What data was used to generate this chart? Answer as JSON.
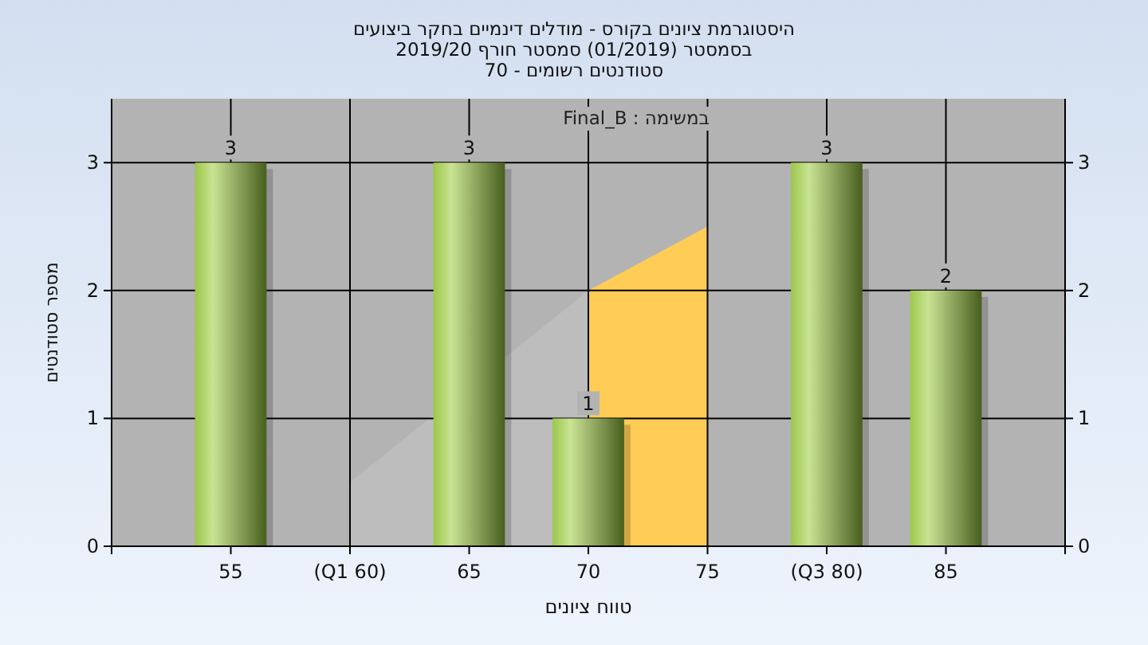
{
  "chart_data": {
    "type": "bar",
    "title": "היסטוגרמת ציונים בקורס - מודלים דינמיים בחקר ביצועים",
    "subtitle": "בסמסטר  (01/2019)  סמסטר חורף 2019/20\nסטודנטים רשומים - 70",
    "xlabel": "טווח ציונים",
    "ylabel": "מספר סטודנטים",
    "annotations": [
      "במשימה : Final_B"
    ],
    "categories": [
      "55",
      "(Q1 60)",
      "65",
      "70",
      "75",
      "(Q3 80)",
      "85"
    ],
    "series": [
      {
        "type": "area",
        "color": "#bdbdbd",
        "values": [
          null,
          0.5,
          null,
          2.0,
          2.5,
          null,
          null
        ]
      },
      {
        "type": "area",
        "color": "#ffcc55",
        "values": [
          null,
          null,
          null,
          2.0,
          2.5,
          null,
          null
        ]
      },
      {
        "color": "#9cc74a",
        "values": [
          3,
          0,
          3,
          1,
          0,
          3,
          2
        ],
        "value_labels": [
          "3",
          null,
          "3",
          "1",
          null,
          "3",
          "2"
        ]
      }
    ],
    "ylim": [
      0,
      3.5
    ],
    "yticks": [
      0,
      1,
      2,
      3
    ],
    "y2lim": [
      0,
      3.5
    ],
    "y2ticks": [
      0,
      1,
      2,
      3
    ],
    "grid": true
  }
}
